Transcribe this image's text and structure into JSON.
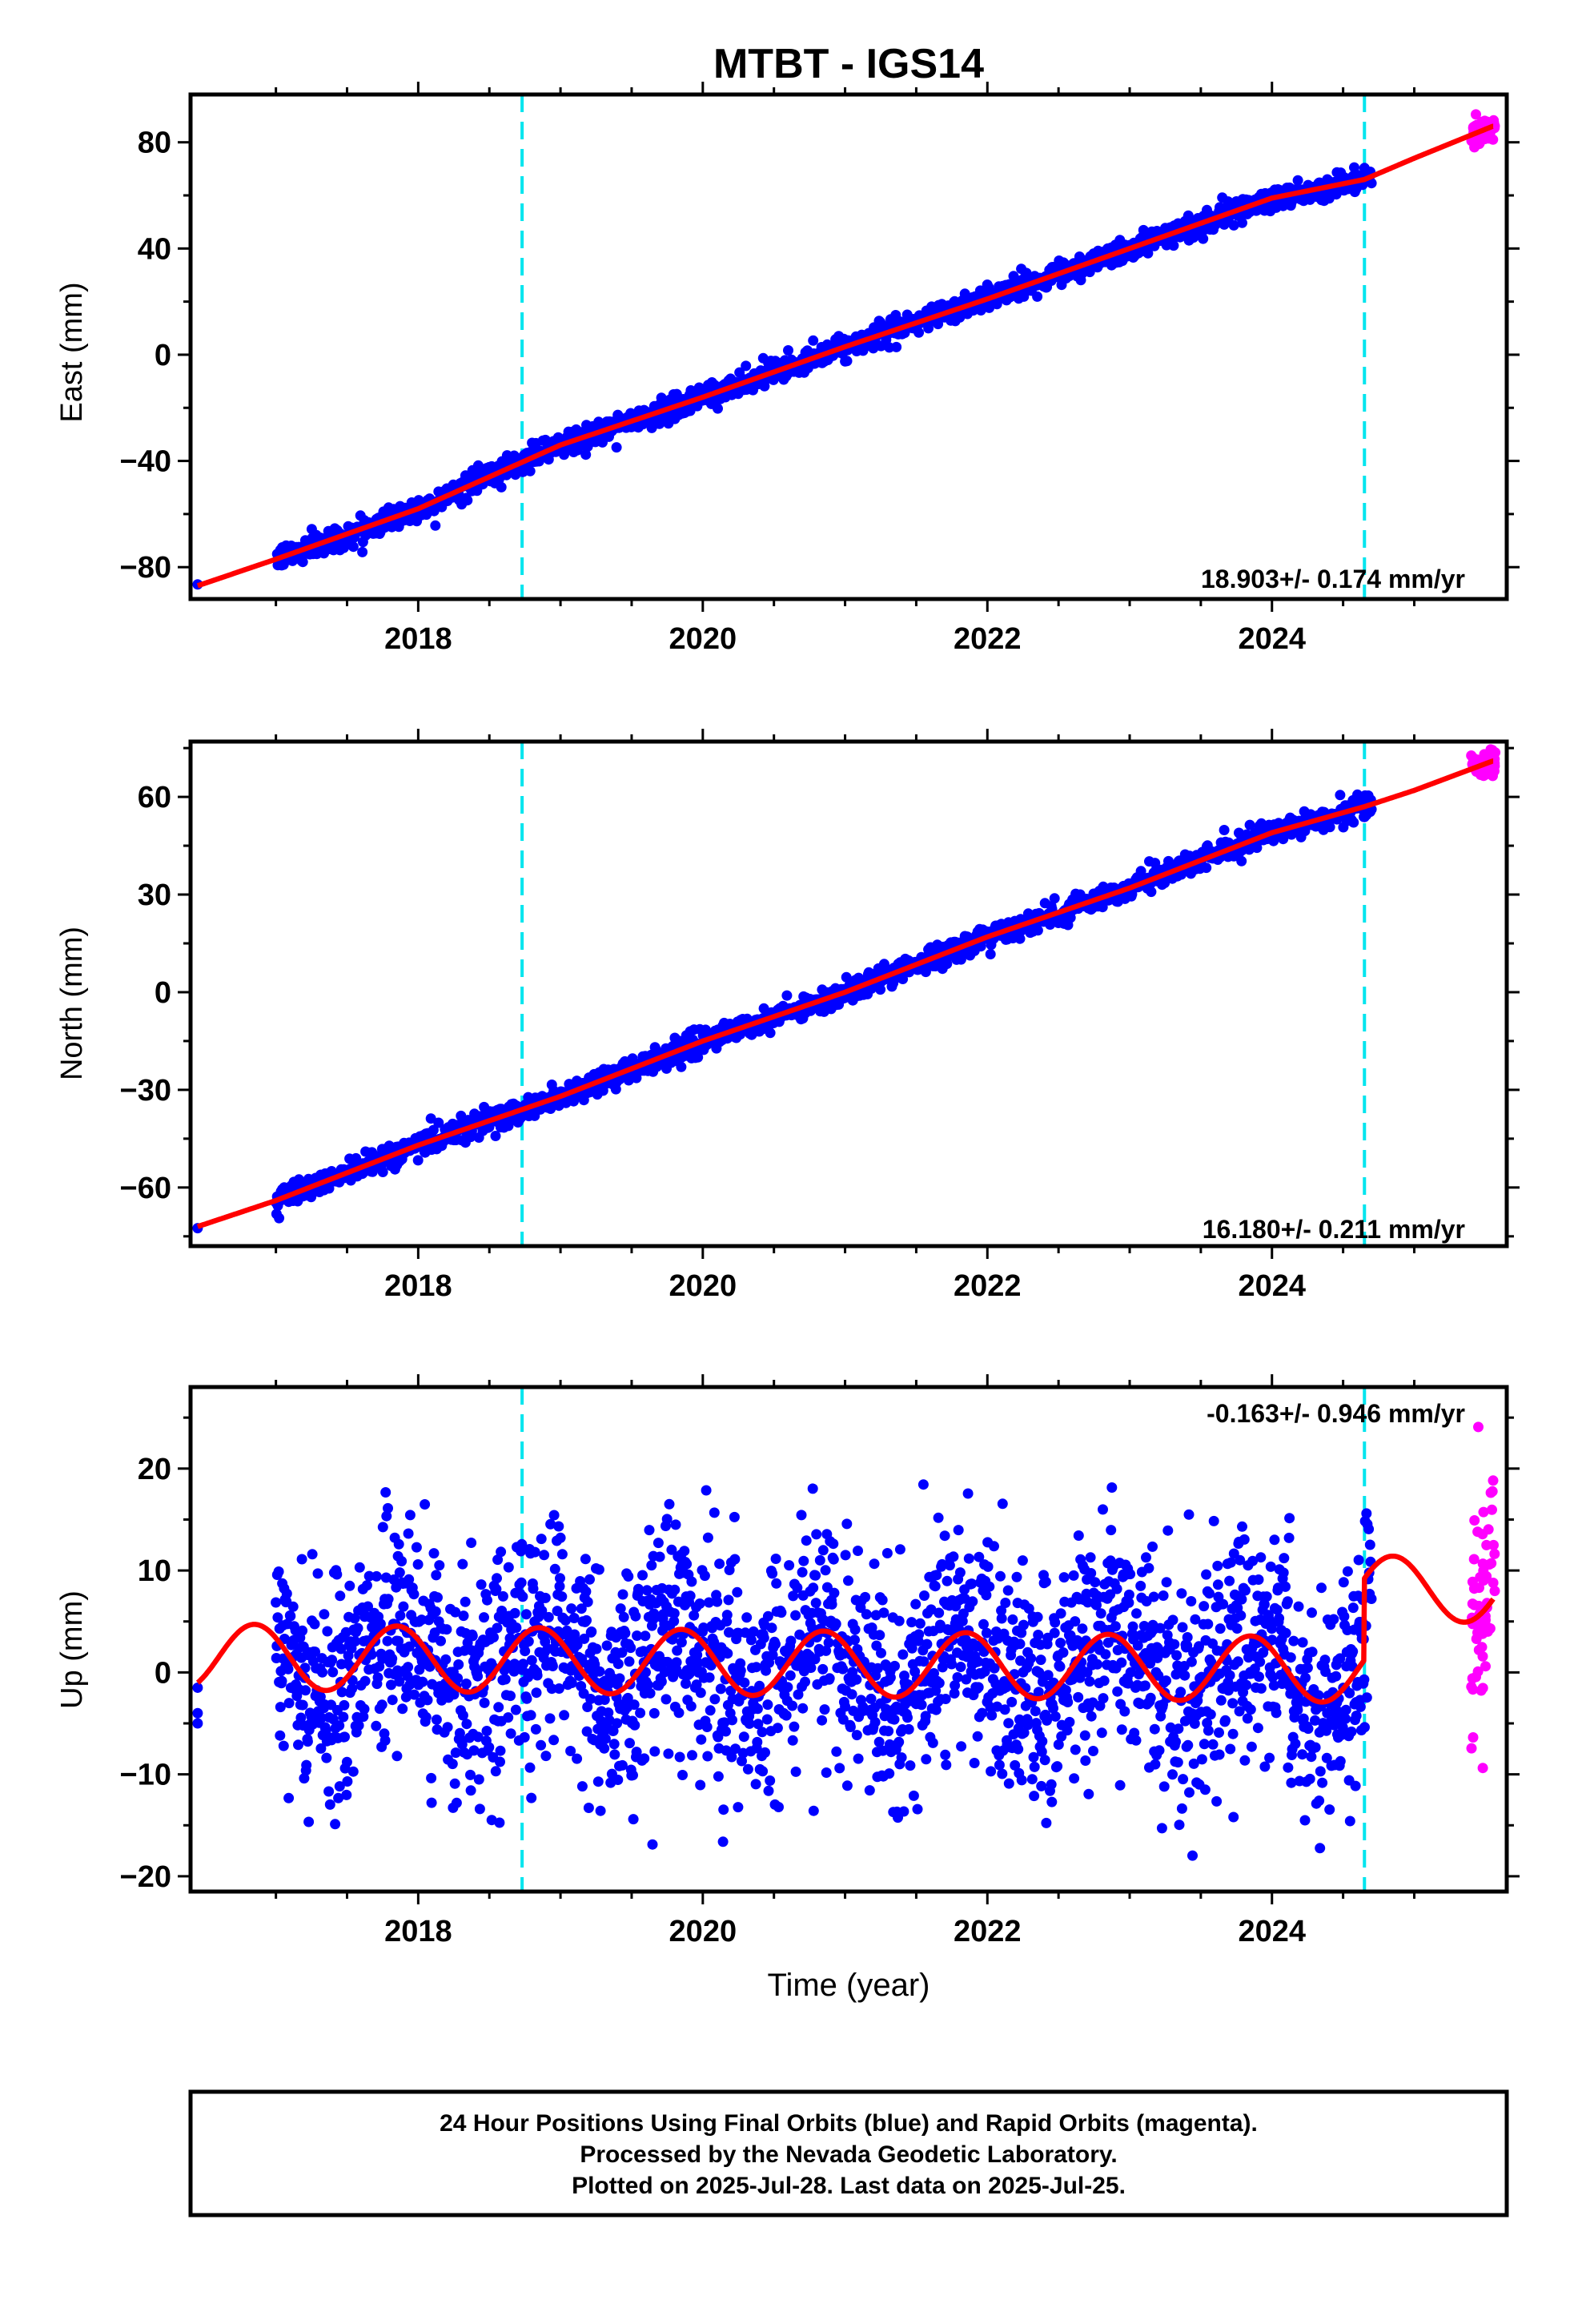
{
  "title": "MTBT - IGS14",
  "x_label": "Time (year)",
  "colors": {
    "final_orbits": "#0000ff",
    "rapid_orbits": "#ff00ff",
    "model": "#ff0000",
    "equipment_change": "#00e5ee"
  },
  "footer": {
    "line1": "24 Hour Positions Using Final Orbits (blue) and Rapid Orbits (magenta).",
    "line2": "Processed by the Nevada Geodetic Laboratory.",
    "line3": "Plotted on 2025-Jul-28. Last data on 2025-Jul-25."
  },
  "chart_data": [
    {
      "type": "scatter",
      "component": "East",
      "ylabel": "East (mm)",
      "xlim": [
        2016.4,
        2025.65
      ],
      "ylim": [
        -92,
        98
      ],
      "xticks": [
        "2018",
        "2020",
        "2022",
        "2024"
      ],
      "yticks": [
        "-80",
        "-40",
        "0",
        "40",
        "80"
      ],
      "rate_label": "18.903+/- 0.174 mm/yr",
      "rate_mm_per_yr": 18.903,
      "rate_sigma": 0.174,
      "model_points": [
        [
          2016.45,
          -87
        ],
        [
          2017.0,
          -77
        ],
        [
          2018.0,
          -58
        ],
        [
          2019.0,
          -34
        ],
        [
          2020.0,
          -16
        ],
        [
          2021.0,
          3
        ],
        [
          2022.0,
          21
        ],
        [
          2023.0,
          40
        ],
        [
          2024.0,
          59
        ],
        [
          2024.65,
          66
        ],
        [
          2025.0,
          74
        ],
        [
          2025.55,
          86
        ]
      ],
      "noise_mm": 2.2,
      "first_point": [
        2016.45,
        -86.5
      ],
      "final_series": {
        "name": "Final Orbits (blue)",
        "start": 2017.0,
        "end": 2024.7
      },
      "rapid_series": {
        "name": "Rapid Orbits (magenta)",
        "start": 2025.4,
        "end": 2025.57,
        "count": 60
      },
      "equipment_changes": [
        2018.73,
        2024.65
      ]
    },
    {
      "type": "scatter",
      "component": "North",
      "ylabel": "North (mm)",
      "xlim": [
        2016.4,
        2025.65
      ],
      "ylim": [
        -78,
        77
      ],
      "xticks": [
        "2018",
        "2020",
        "2022",
        "2024"
      ],
      "yticks": [
        "-60",
        "-30",
        "0",
        "30",
        "60"
      ],
      "rate_label": "16.180+/- 0.211 mm/yr",
      "rate_mm_per_yr": 16.18,
      "rate_sigma": 0.211,
      "model_points": [
        [
          2016.45,
          -72
        ],
        [
          2017.0,
          -64
        ],
        [
          2018.0,
          -47
        ],
        [
          2019.0,
          -32
        ],
        [
          2020.0,
          -15
        ],
        [
          2021.0,
          0
        ],
        [
          2022.0,
          17
        ],
        [
          2023.0,
          32
        ],
        [
          2024.0,
          49
        ],
        [
          2024.65,
          57
        ],
        [
          2025.0,
          62
        ],
        [
          2025.55,
          71
        ]
      ],
      "noise_mm": 1.8,
      "first_point": [
        2016.45,
        -72.5
      ],
      "final_series": {
        "name": "Final Orbits (blue)",
        "start": 2017.0,
        "end": 2024.7
      },
      "rapid_series": {
        "name": "Rapid Orbits (magenta)",
        "start": 2025.4,
        "end": 2025.57,
        "count": 60
      },
      "equipment_changes": [
        2018.73,
        2024.65
      ]
    },
    {
      "type": "scatter",
      "component": "Up",
      "ylabel": "Up (mm)",
      "xlim": [
        2016.4,
        2025.65
      ],
      "ylim": [
        -21.5,
        28
      ],
      "xticks": [
        "2018",
        "2020",
        "2022",
        "2024"
      ],
      "yticks": [
        "-20",
        "-10",
        "0",
        "10",
        "20"
      ],
      "rate_label": "-0.163+/- 0.946 mm/yr",
      "rate_mm_per_yr": -0.163,
      "rate_sigma": 0.946,
      "seasonal_model": {
        "mean_mm": 1.0,
        "amplitude_mm": 3.2,
        "phase_year": 0.6,
        "trend_mm_per_yr": -0.163,
        "offset_after_2024_65_mm": 8.0
      },
      "noise_mm": 5.5,
      "first_points": [
        [
          2016.45,
          -1.5
        ],
        [
          2016.45,
          -4.0
        ],
        [
          2016.45,
          -5.0
        ]
      ],
      "final_series": {
        "name": "Final Orbits (blue)",
        "start": 2017.0,
        "end": 2024.7
      },
      "rapid_series": {
        "name": "Rapid Orbits (magenta)",
        "start": 2025.4,
        "end": 2025.57,
        "count": 60
      },
      "equipment_changes": [
        2018.73,
        2024.65
      ]
    }
  ]
}
